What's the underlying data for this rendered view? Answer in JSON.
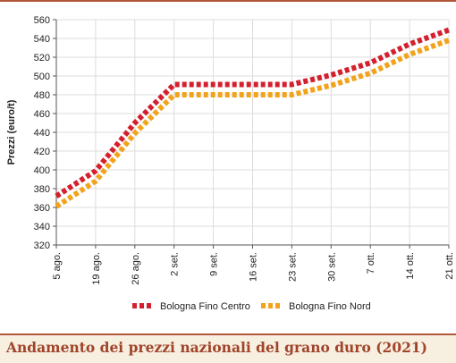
{
  "chart_data": {
    "type": "line",
    "title": "Andamento dei prezzi nazionali del grano duro (2021)",
    "ylabel": "Prezzi (euro/t)",
    "xlabel": "",
    "categories": [
      "5 ago.",
      "19 ago.",
      "26 ago.",
      "2 set.",
      "9 set.",
      "16 set.",
      "23 set.",
      "30 set.",
      "7 ott.",
      "14 ott.",
      "21 ott."
    ],
    "ylim": [
      320,
      560
    ],
    "yticks": [
      320,
      340,
      360,
      380,
      400,
      420,
      440,
      460,
      480,
      500,
      520,
      540,
      560
    ],
    "grid": true,
    "legend_position": "bottom",
    "series": [
      {
        "name": "Bologna Fino Centro",
        "color": "#d4202e",
        "values": [
          372,
          399,
          450,
          491,
          491,
          491,
          491,
          501,
          514,
          534,
          549
        ]
      },
      {
        "name": "Bologna Fino Nord",
        "color": "#f2a31b",
        "values": [
          361,
          388,
          439,
          480,
          480,
          480,
          480,
          490,
          503,
          523,
          538
        ]
      }
    ]
  }
}
